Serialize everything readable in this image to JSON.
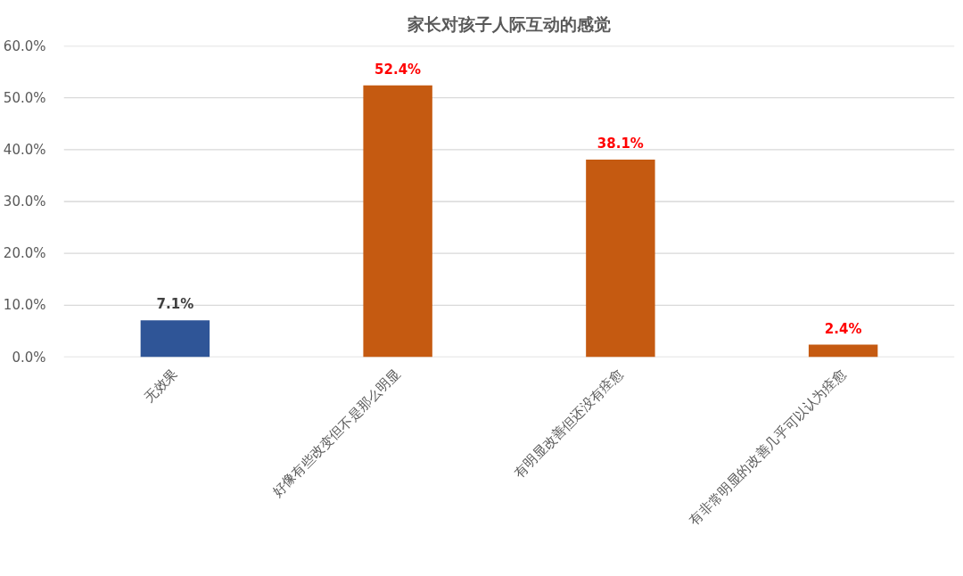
{
  "chart_data": {
    "type": "bar",
    "title": "家长对孩子人际互动的感觉",
    "categories": [
      "无效果",
      "好像有些改变但不是那么明显",
      "有明显改善但还没有痊愈",
      "有非常明显的改善几乎可以认为痊愈"
    ],
    "values": [
      7.1,
      52.4,
      38.1,
      2.4
    ],
    "colors": [
      "#2f5597",
      "#c55a11",
      "#c55a11",
      "#c55a11"
    ],
    "value_labels": [
      "7.1%",
      "52.4%",
      "38.1%",
      "2.4%"
    ],
    "ylim": [
      0,
      60
    ],
    "yticks": [
      {
        "value": 0,
        "label": "0.0%"
      },
      {
        "value": 10,
        "label": "10.0%"
      },
      {
        "value": 20,
        "label": "20.0%"
      },
      {
        "value": 30,
        "label": "30.0%"
      },
      {
        "value": 40,
        "label": "40.0%"
      },
      {
        "value": 50,
        "label": "50.0%"
      },
      {
        "value": 60,
        "label": "60.0%"
      }
    ],
    "grid": "y"
  }
}
